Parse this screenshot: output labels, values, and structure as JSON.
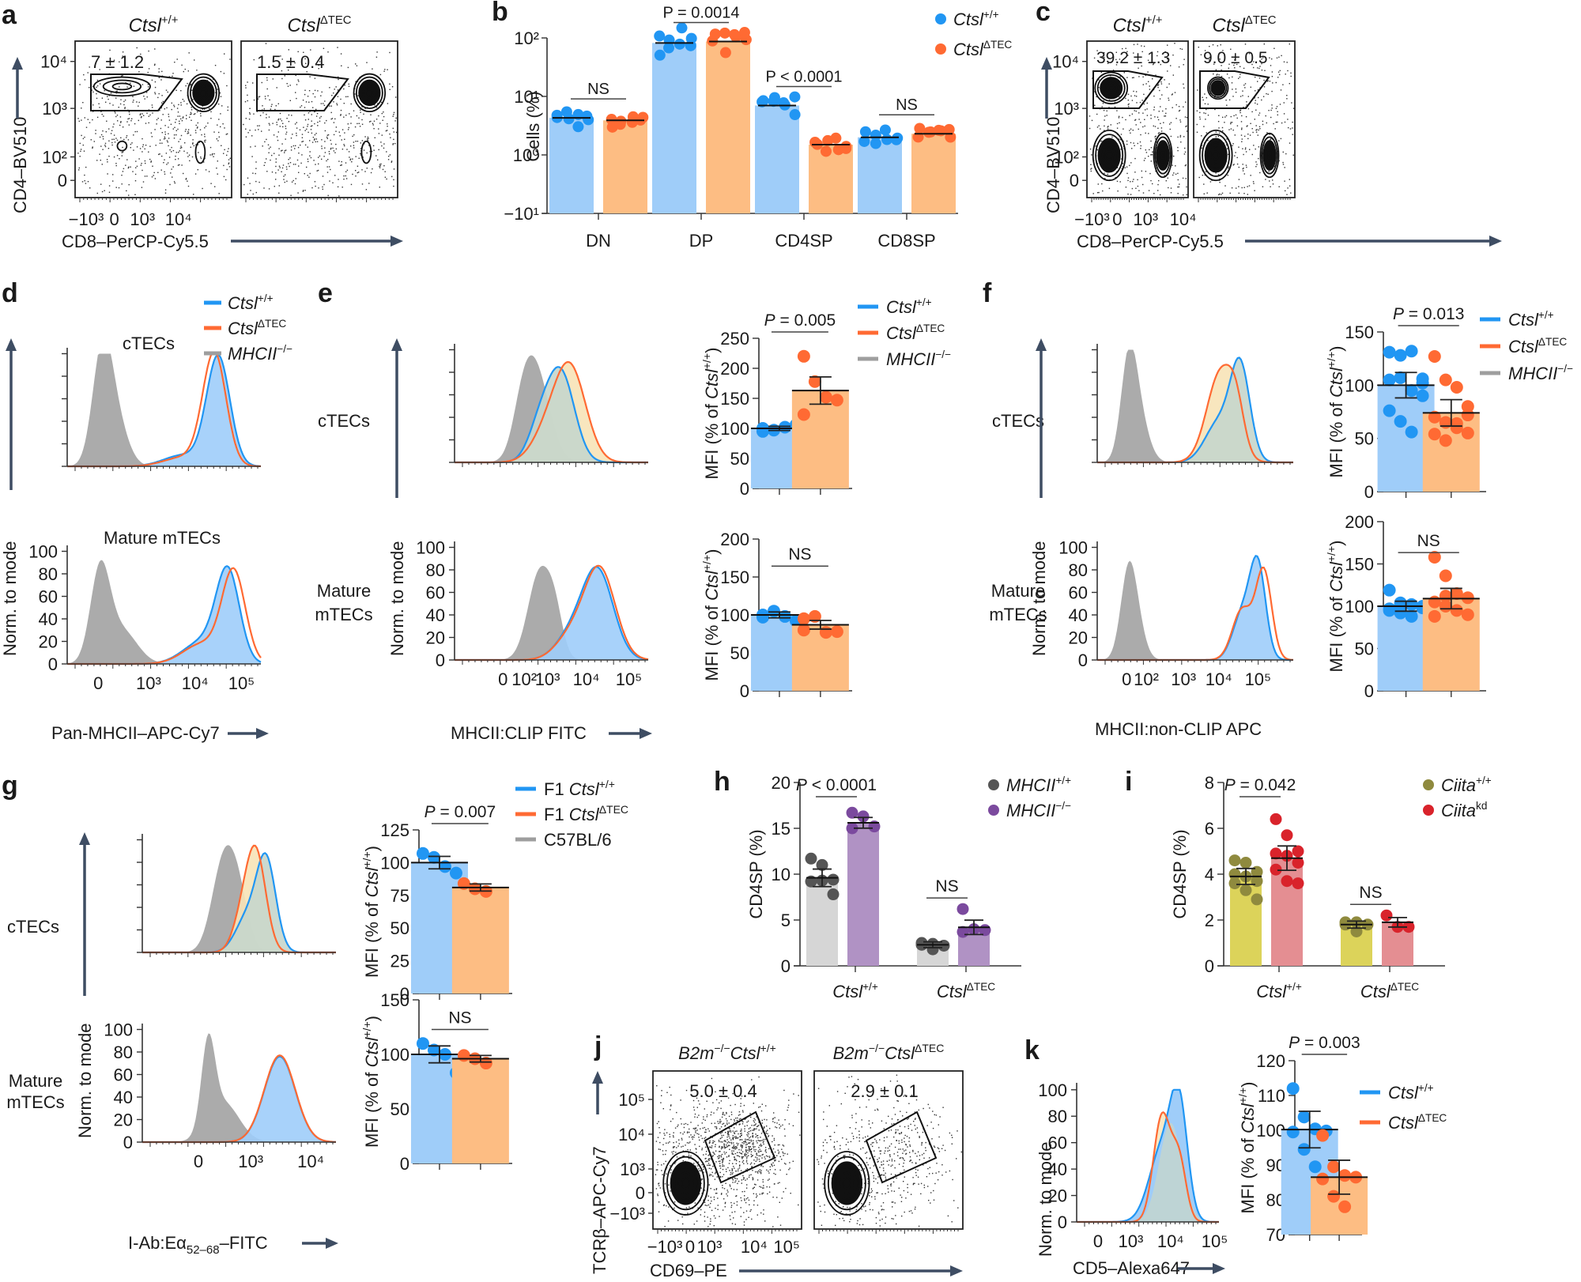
{
  "figure": {
    "colors": {
      "wt": "#2196f3",
      "wt_fill": "#9fcdf9",
      "ko": "#ff6a33",
      "ko_fill": "#fdbd83",
      "mhc_null": "#9e9e9e",
      "mhc_null_fill": "#a6a6a6",
      "overlap_fill": "#c5d6cc",
      "ko_only_fill": "#f7e3b7",
      "h_grey_bar": "#d6d6d6",
      "h_grey_dot": "#555555",
      "h_purple_bar": "#b092c4",
      "h_purple_dot": "#7b4a9e",
      "i_yellow_bar": "#dcd35a",
      "i_yellow_dot": "#8f8a3e",
      "i_red_bar": "#e48e92",
      "i_red_dot": "#d9232b",
      "axis_arrow": "#3e4d63"
    }
  },
  "chart_data": [
    {
      "id": "a",
      "panel_label": "a",
      "type": "scatter",
      "subtype": "flow-contour",
      "subplots": [
        {
          "title_base": "Ctsl",
          "title_sup": "+/+",
          "gate_label": "7 ± 1.2"
        },
        {
          "title_base": "Ctsl",
          "title_sup": "ΔTEC",
          "gate_label": "1.5 ± 0.4"
        }
      ],
      "xlabel": "CD8–PerCP-Cy5.5",
      "ylabel": "CD4–BV510",
      "xticks": [
        "−10³",
        "0",
        "10³",
        "10⁴"
      ],
      "yticks": [
        "10⁴",
        "10³",
        "10²",
        "0"
      ]
    },
    {
      "id": "b",
      "panel_label": "b",
      "type": "bar",
      "ylabel": "Cells (%)",
      "yscale": "log",
      "yticks": [
        "10²",
        "10¹",
        "10⁰",
        "−10¹"
      ],
      "categories": [
        "DN",
        "DP",
        "CD4SP",
        "CD8SP"
      ],
      "series": [
        {
          "name_base": "Ctsl",
          "name_sup": "+/+",
          "values": [
            4.3,
            82,
            7.0,
            2.0
          ]
        },
        {
          "name_base": "Ctsl",
          "name_sup": "ΔTEC",
          "values": [
            3.9,
            87,
            1.5,
            2.3
          ]
        }
      ],
      "annotations": [
        "NS",
        "P = 0.0014",
        "P < 0.0001",
        "NS"
      ],
      "legend": "top-right"
    },
    {
      "id": "c",
      "panel_label": "c",
      "type": "scatter",
      "subtype": "flow-contour",
      "subplots": [
        {
          "title_base": "Ctsl",
          "title_sup": "+/+",
          "gate_label": "39.2 ± 1.3"
        },
        {
          "title_base": "Ctsl",
          "title_sup": "ΔTEC",
          "gate_label": "9.0 ± 0.5"
        }
      ],
      "xlabel": "CD8–PerCP-Cy5.5",
      "ylabel": "CD4–BV510",
      "xticks": [
        "−10³",
        "0",
        "10³",
        "10⁴"
      ],
      "yticks": [
        "10⁴",
        "10³",
        "10²",
        "0"
      ]
    },
    {
      "id": "d",
      "panel_label": "d",
      "type": "area",
      "subtype": "histogram",
      "rows": [
        "cTECs",
        "Mature mTECs"
      ],
      "xlabel": "Pan-MHCII–APC-Cy7",
      "ylabel": "Norm. to mode",
      "xticks": [
        "0",
        "10³",
        "10⁴",
        "10⁵"
      ],
      "yticks": [
        "0",
        "20",
        "40",
        "60",
        "80",
        "100"
      ],
      "ylim": [
        0,
        100
      ],
      "legend": [
        {
          "base": "Ctsl",
          "sup": "+/+"
        },
        {
          "base": "Ctsl",
          "sup": "ΔTEC"
        },
        {
          "base": "MHCII",
          "sup": "−/−"
        }
      ]
    },
    {
      "id": "e",
      "panel_label": "e",
      "type": "bar",
      "histogram": {
        "rows": [
          "cTECs",
          "Mature mTECs"
        ],
        "xlabel": "MHCII:CLIP FITC",
        "ylabel": "Norm. to mode",
        "xticks": [
          "0",
          "10²",
          "10³",
          "10⁴",
          "10⁵"
        ],
        "yticks": [
          "0",
          "20",
          "40",
          "60",
          "80",
          "100"
        ]
      },
      "bars": [
        {
          "row": "cTECs",
          "ylim": [
            0,
            250
          ],
          "yticks": [
            0,
            50,
            100,
            150,
            200,
            250
          ],
          "ylabel": "MFI (% of Ctsl+/+)",
          "values": [
            100,
            163
          ],
          "annotation": "P = 0.005",
          "points": [
            [
              95,
              97,
              102,
              106,
              100
            ],
            [
              220,
              178,
              152,
              147,
              123
            ]
          ]
        },
        {
          "row": "Mature mTECs",
          "ylim": [
            0,
            200
          ],
          "yticks": [
            0,
            50,
            100,
            150,
            200
          ],
          "ylabel": "MFI (% of Ctsl+/+)",
          "values": [
            100,
            87
          ],
          "annotation": "NS",
          "points": [
            [
              97,
              105,
              98,
              92,
              100
            ],
            [
              95,
              98,
              77,
              78,
              80
            ]
          ]
        }
      ],
      "legend": [
        {
          "base": "Ctsl",
          "sup": "+/+"
        },
        {
          "base": "Ctsl",
          "sup": "ΔTEC"
        },
        {
          "base": "MHCII",
          "sup": "−/−"
        }
      ]
    },
    {
      "id": "f",
      "panel_label": "f",
      "type": "bar",
      "histogram": {
        "rows": [
          "cTECs",
          "Mature mTECs"
        ],
        "xlabel": "MHCII:non-CLIP APC",
        "ylabel": "Norm. to mode",
        "xticks": [
          "0",
          "10²",
          "10³",
          "10⁴",
          "10⁵"
        ],
        "yticks": [
          "0",
          "20",
          "40",
          "60",
          "80",
          "100"
        ]
      },
      "bars": [
        {
          "row": "cTECs",
          "ylim": [
            0,
            150
          ],
          "yticks": [
            0,
            50,
            100,
            150
          ],
          "ylabel": "MFI (% of Ctsl+/+)",
          "values": [
            100,
            74
          ],
          "annotation": "P = 0.013",
          "points": [
            [
              131,
              128,
              132,
              106,
              105,
              107,
              95,
              90,
              76,
              66,
              56,
              102
            ],
            [
              127,
              105,
              98,
              80,
              70,
              65,
              64,
              55,
              54,
              48,
              60,
              72
            ]
          ]
        },
        {
          "row": "Mature mTECs",
          "ylim": [
            0,
            200
          ],
          "yticks": [
            0,
            50,
            100,
            150,
            200
          ],
          "ylabel": "MFI (% of Ctsl+/+)",
          "values": [
            100,
            109
          ],
          "annotation": "NS",
          "points": [
            [
              119,
              104,
              102,
              98,
              95,
              92,
              88,
              100,
              97,
              101
            ],
            [
              158,
              136,
              115,
              110,
              105,
              100,
              95,
              90,
              88,
              112
            ]
          ]
        }
      ],
      "legend": [
        {
          "base": "Ctsl",
          "sup": "+/+"
        },
        {
          "base": "Ctsl",
          "sup": "ΔTEC"
        },
        {
          "base": "MHCII",
          "sup": "−/−"
        }
      ]
    },
    {
      "id": "g",
      "panel_label": "g",
      "type": "bar",
      "histogram": {
        "rows": [
          "cTECs",
          "Mature mTECs"
        ],
        "xlabel_pre": "I-Ab:Eα",
        "xlabel_sub": "52–68",
        "xlabel_post": "–FITC",
        "ylabel": "Norm. to mode",
        "xticks": [
          "0",
          "10³",
          "10⁴"
        ],
        "yticks": [
          "0",
          "20",
          "40",
          "60",
          "80",
          "100"
        ]
      },
      "bars": [
        {
          "row": "cTECs",
          "ylim": [
            0,
            125
          ],
          "yticks": [
            0,
            25,
            50,
            75,
            100,
            125
          ],
          "ylabel": "MFI (% of Ctsl+/+)",
          "values": [
            100,
            81
          ],
          "annotation": "P = 0.007",
          "points": [
            [
              107,
              104,
              97,
              92
            ],
            [
              84,
              80,
              78
            ]
          ]
        },
        {
          "row": "Mature mTECs",
          "ylim": [
            0,
            150
          ],
          "yticks": [
            0,
            50,
            100,
            150
          ],
          "ylabel": "MFI (% of Ctsl+/+)",
          "values": [
            100,
            96
          ],
          "annotation": "NS",
          "points": [
            [
              110,
              104,
              100,
              83
            ],
            [
              99,
              96,
              92
            ]
          ]
        }
      ],
      "legend": [
        {
          "base": "F1 Ctsl",
          "sup": "+/+"
        },
        {
          "base": "F1 Ctsl",
          "sup": "ΔTEC"
        },
        {
          "base": "C57BL/6",
          "sup": ""
        }
      ]
    },
    {
      "id": "h",
      "panel_label": "h",
      "type": "bar",
      "ylabel": "CD4SP (%)",
      "ylim": [
        0,
        20
      ],
      "yticks": [
        0,
        5,
        10,
        15,
        20
      ],
      "categories": [
        {
          "base": "Ctsl",
          "sup": "+/+"
        },
        {
          "base": "Ctsl",
          "sup": "ΔTEC"
        }
      ],
      "series": [
        {
          "name_base": "MHCII",
          "name_sup": "+/+",
          "values": [
            9.6,
            2.3
          ],
          "points": [
            [
              11.7,
              11.0,
              9.4,
              9.2,
              9.3,
              7.8
            ],
            [
              2.5,
              2.4,
              2.2,
              2.3,
              1.8
            ]
          ]
        },
        {
          "name_base": "MHCII",
          "name_sup": "−/−",
          "values": [
            15.6,
            4.2
          ],
          "points": [
            [
              16.7,
              16.3,
              15.2,
              15.0
            ],
            [
              6.2,
              4.0,
              3.9,
              3.7
            ]
          ]
        }
      ],
      "annotations": [
        "P < 0.0001",
        "NS"
      ],
      "legend": "top-right"
    },
    {
      "id": "i",
      "panel_label": "i",
      "type": "bar",
      "ylabel": "CD4SP (%)",
      "ylim": [
        0,
        8
      ],
      "yticks": [
        0,
        2,
        4,
        6,
        8
      ],
      "categories": [
        {
          "base": "Ctsl",
          "sup": "+/+"
        },
        {
          "base": "Ctsl",
          "sup": "ΔTEC"
        }
      ],
      "series": [
        {
          "name_base": "Ciita",
          "name_sup": "+/+",
          "values": [
            3.9,
            1.8
          ],
          "points": [
            [
              4.6,
              4.5,
              4.1,
              4.0,
              3.9,
              3.7,
              3.6,
              3.3,
              2.9
            ],
            [
              1.9,
              1.9,
              1.8,
              1.8,
              1.5
            ]
          ]
        },
        {
          "name_base": "Ciita",
          "name_sup": "kd",
          "values": [
            4.7,
            1.9
          ],
          "points": [
            [
              6.4,
              5.7,
              5.0,
              4.9,
              4.8,
              4.5,
              4.2,
              3.7,
              3.6
            ],
            [
              2.2,
              1.7,
              1.7
            ]
          ]
        }
      ],
      "annotations": [
        "P = 0.042",
        "NS"
      ],
      "legend": "top-right"
    },
    {
      "id": "j",
      "panel_label": "j",
      "type": "scatter",
      "subtype": "flow-contour",
      "subplots": [
        {
          "title_base1": "B2m",
          "title_sup1": "−/−",
          "title_base2": "Ctsl",
          "title_sup2": "+/+",
          "gate_label": "5.0 ± 0.4"
        },
        {
          "title_base1": "B2m",
          "title_sup1": "−/−",
          "title_base2": "Ctsl",
          "title_sup2": "ΔTEC",
          "gate_label": "2.9 ± 0.1"
        }
      ],
      "xlabel": "CD69–PE",
      "ylabel": "TCRβ–APC-Cy7",
      "xticks": [
        "−10³",
        "0",
        "10³",
        "10⁴",
        "10⁵"
      ],
      "yticks": [
        "10⁵",
        "10⁴",
        "10³",
        "0",
        "−10³"
      ]
    },
    {
      "id": "k",
      "panel_label": "k",
      "type": "bar",
      "histogram": {
        "xlabel": "CD5–Alexa647",
        "ylabel": "Norm. to mode",
        "xticks": [
          "0",
          "10³",
          "10⁴",
          "10⁵"
        ],
        "yticks": [
          "0",
          "20",
          "40",
          "60",
          "80",
          "100"
        ]
      },
      "bars": [
        {
          "ylim": [
            70,
            120
          ],
          "yticks": [
            70,
            80,
            90,
            100,
            110,
            120
          ],
          "ylabel": "MFI (% of Ctsl+/+)",
          "values": [
            100.2,
            86.5
          ],
          "annotation": "P = 0.003",
          "points": [
            [
              112,
              103.8,
              100.4,
              99.8,
              99.5,
              94.5,
              89.5
            ],
            [
              98.5,
              89.5,
              87,
              86.5,
              86,
              81,
              78
            ]
          ]
        }
      ],
      "legend": [
        {
          "base": "Ctsl",
          "sup": "+/+"
        },
        {
          "base": "Ctsl",
          "sup": "ΔTEC"
        }
      ]
    }
  ]
}
